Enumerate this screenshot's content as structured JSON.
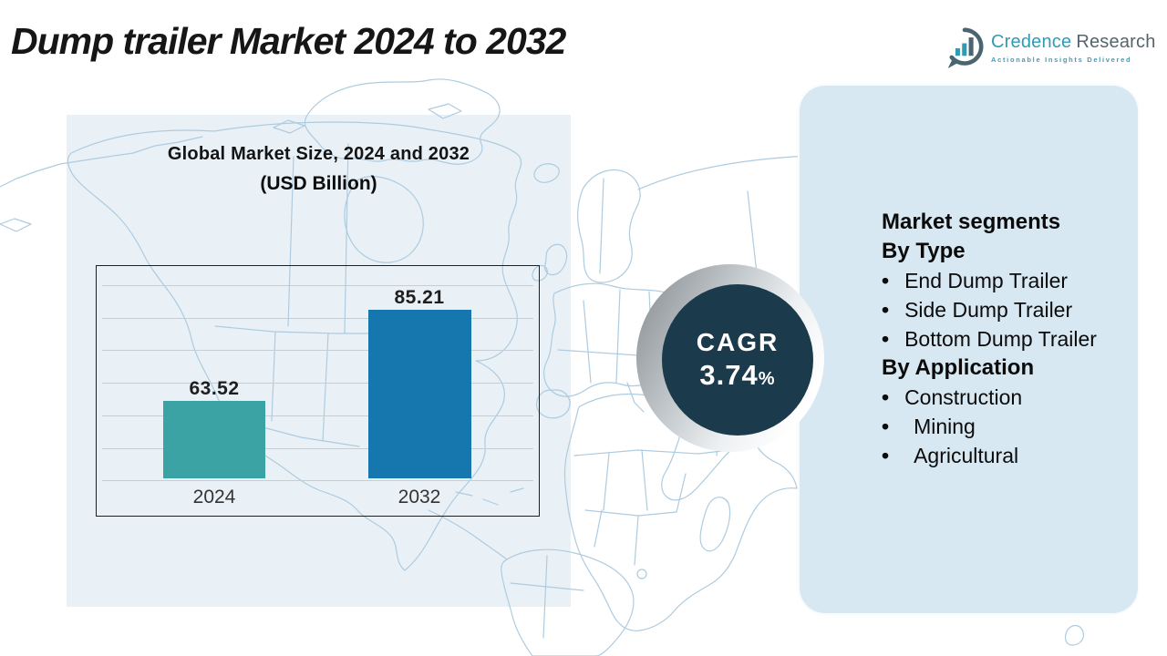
{
  "page": {
    "title_text": "Dump trailer Market 2024 to 2032"
  },
  "logo": {
    "name_part1": "Credence",
    "name_part2": "Research",
    "tagline": "Actionable Insights Delivered",
    "icon": "bar-chart-logo-icon",
    "colors": {
      "name_part1": "#2F9CB5",
      "name_part2": "#55656E",
      "tagline": "#4A9AAD",
      "icon_ring": "#4B6570",
      "icon_bars": "#2F9CB5"
    }
  },
  "chart_data": {
    "type": "bar",
    "title": "Global Market Size, 2024 and 2032",
    "subtitle": "(USD Billion)",
    "categories": [
      "2024",
      "2032"
    ],
    "values": [
      63.52,
      85.21
    ],
    "data_labels": [
      "63.52",
      "85.21"
    ],
    "bar_colors": [
      "#3BA3A3",
      "#1577AE"
    ],
    "xlabel": "",
    "ylabel": "",
    "legend": "none",
    "grid": true,
    "gridline_count": 7,
    "y_axis_labels_visible": false,
    "ylim_estimated": [
      45,
      91.5
    ]
  },
  "cagr_badge": {
    "label": "CAGR",
    "value": "3.74",
    "unit": "%",
    "circle_color": "#1B3A4C"
  },
  "segments_panel": {
    "heading": "Market segments",
    "by_type": {
      "title": "By Type",
      "items": [
        "End Dump Trailer",
        "Side Dump Trailer",
        "Bottom Dump Trailer"
      ]
    },
    "by_application": {
      "title": "By Application",
      "items": [
        "Construction",
        "Mining",
        "Agricultural"
      ]
    }
  },
  "colors": {
    "background": "#FFFFFF",
    "chart_panel": "#E9F1F7",
    "right_panel": "#D8E8F3",
    "map_stroke": "#AECBDF",
    "bar_2024": "#3BA3A3",
    "bar_2032": "#1577AE",
    "cagr_circle": "#1B3A4C",
    "title_text": "#161616"
  }
}
